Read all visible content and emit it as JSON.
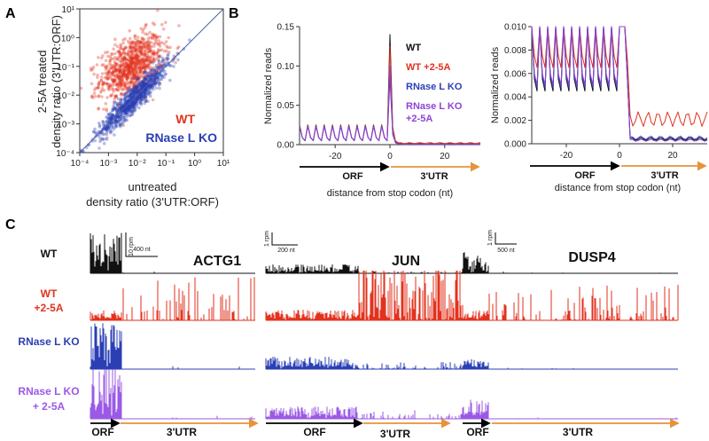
{
  "panel_labels": {
    "a": "A",
    "b": "B",
    "c": "C"
  },
  "colors": {
    "wt": "#e2321e",
    "ko": "#2b3fb5",
    "wt_treated": "#e2321e",
    "ko_treated": "#8e44d6",
    "wt_track": "#111111",
    "ko_track_treated": "#9b59e6",
    "arrow_orf": "#000000",
    "arrow_utr": "#e8923a"
  },
  "chart_data": [
    {
      "id": "A",
      "type": "scatter",
      "scale": "log10",
      "xlabel_line1": "untreated",
      "xlabel_line2": "density ratio (3'UTR:ORF)",
      "ylabel_line1": "2-5A treated",
      "ylabel_line2": "density ratio (3'UTR:ORF)",
      "xticks": [
        "10⁻⁴",
        "10⁻³",
        "10⁻²",
        "10⁻¹",
        "10⁰",
        "10¹"
      ],
      "yticks": [
        "10⁻⁴",
        "10⁻³",
        "10⁻²",
        "10⁻¹",
        "10⁰",
        "10¹"
      ],
      "xlim_log10": [
        -4,
        1
      ],
      "ylim_log10": [
        -4,
        1
      ],
      "diagonal": "y = x",
      "series": [
        {
          "name": "WT",
          "center_log10": [
            -2.2,
            -1.0
          ],
          "spread_log10": [
            0.55,
            0.5
          ],
          "n_points": 900
        },
        {
          "name": "RNase L KO",
          "center_log10": [
            -2.1,
            -2.1
          ],
          "spread_log10": [
            0.6,
            0.6
          ],
          "n_points": 900
        }
      ]
    },
    {
      "id": "B-left",
      "type": "line",
      "xlabel": "distance from stop codon (nt)",
      "ylabel": "Normalized reads",
      "xlim": [
        -33,
        33
      ],
      "ylim": [
        0,
        0.15
      ],
      "xticks": [
        "-20",
        "0",
        "20"
      ],
      "yticks": [
        "0.00",
        "0.05",
        "0.10",
        "0.15"
      ],
      "orf_label": "ORF",
      "utr_label": "3'UTR",
      "series": [
        {
          "name": "WT",
          "periodic_peak": 0.025,
          "trough": 0.005,
          "stop_peak": 0.14,
          "utr_level": 0.001
        },
        {
          "name": "WT +2-5A",
          "periodic_peak": 0.025,
          "trough": 0.005,
          "stop_peak": 0.125,
          "utr_level": 0.002
        },
        {
          "name": "RNase L KO",
          "periodic_peak": 0.024,
          "trough": 0.005,
          "stop_peak": 0.085,
          "utr_level": 0.0005
        },
        {
          "name": "RNase L KO +2-5A",
          "periodic_peak": 0.023,
          "trough": 0.005,
          "stop_peak": 0.1,
          "utr_level": 0.0006
        }
      ]
    },
    {
      "id": "B-right",
      "type": "line",
      "xlabel": "distance from stop codon (nt)",
      "ylabel": "Normalized reads",
      "xlim": [
        -33,
        33
      ],
      "ylim": [
        0,
        0.01
      ],
      "xticks": [
        "-20",
        "0",
        "20"
      ],
      "yticks": [
        "0.000",
        "0.002",
        "0.004",
        "0.006",
        "0.008",
        "0.010"
      ],
      "orf_label": "ORF",
      "utr_label": "3'UTR",
      "series": [
        {
          "name": "WT",
          "trough": 0.0045,
          "utr_level": 0.0004
        },
        {
          "name": "WT +2-5A",
          "trough": 0.0065,
          "utr_level": 0.0021
        },
        {
          "name": "RNase L KO",
          "trough": 0.0048,
          "utr_level": 0.0005
        },
        {
          "name": "RNase L KO +2-5A",
          "trough": 0.005,
          "utr_level": 0.0003
        }
      ]
    },
    {
      "id": "C",
      "type": "coverage_tracks",
      "rows": [
        "WT",
        "WT +2-5A",
        "RNase L KO",
        "RNase L KO + 2-5A"
      ],
      "genes": [
        {
          "name": "ACTG1",
          "scale_y": "10 rpm",
          "scale_x": "400 nt",
          "orf_fraction": 0.19
        },
        {
          "name": "JUN",
          "scale_y": "1 rpm",
          "scale_x": "200 nt",
          "orf_fraction": 0.47
        },
        {
          "name": "DUSP4",
          "scale_y": "1 rpm",
          "scale_x": "500 nt",
          "orf_fraction": 0.12
        }
      ],
      "orf_label": "ORF",
      "utr_label": "3'UTR"
    }
  ],
  "legend_a": {
    "wt": "WT",
    "ko": "RNase L KO"
  },
  "legend_b": {
    "wt": "WT",
    "wt_treated": "WT +2-5A",
    "ko": "RNase L KO",
    "ko_treated_line1": "RNase L KO",
    "ko_treated_line2": "+2-5A"
  },
  "row_labels_c": [
    {
      "line1": "WT",
      "line2": ""
    },
    {
      "line1": "WT",
      "line2": "+2-5A"
    },
    {
      "line1": "RNase L KO",
      "line2": ""
    },
    {
      "line1": "RNase L KO",
      "line2": "+ 2-5A"
    }
  ]
}
